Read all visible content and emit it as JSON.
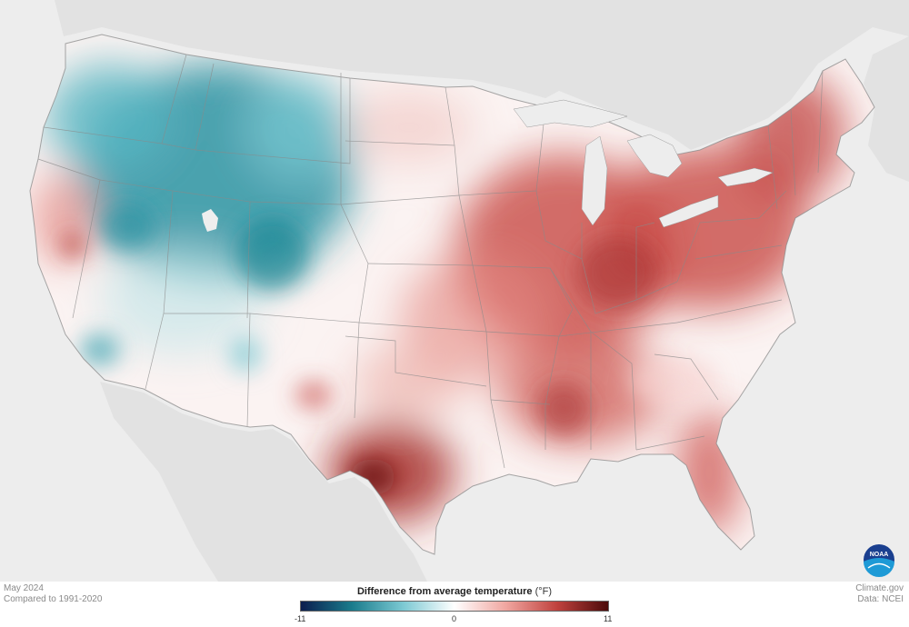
{
  "map": {
    "title": "Difference from average temperature",
    "unit": "(°F)",
    "period": "May 2024",
    "baseline": "Compared to 1991-2020",
    "source_site": "Climate.gov",
    "source_data": "Data: NCEI",
    "logo_text": "NOAA",
    "legend": {
      "min_label": "-11",
      "mid_label": "0",
      "max_label": "11",
      "colors": [
        "#0b1d4e",
        "#1a7c8c",
        "#7cc9d3",
        "#ffffff",
        "#f0a6a0",
        "#c0423e",
        "#4b0a0a"
      ]
    },
    "colors": {
      "land": "#fbf3f2",
      "water": "#ededed",
      "neighbor_land": "#e2e2e2",
      "state_lines": "#888888",
      "cool": "#2a93a2",
      "warm": "#c84a45"
    }
  }
}
